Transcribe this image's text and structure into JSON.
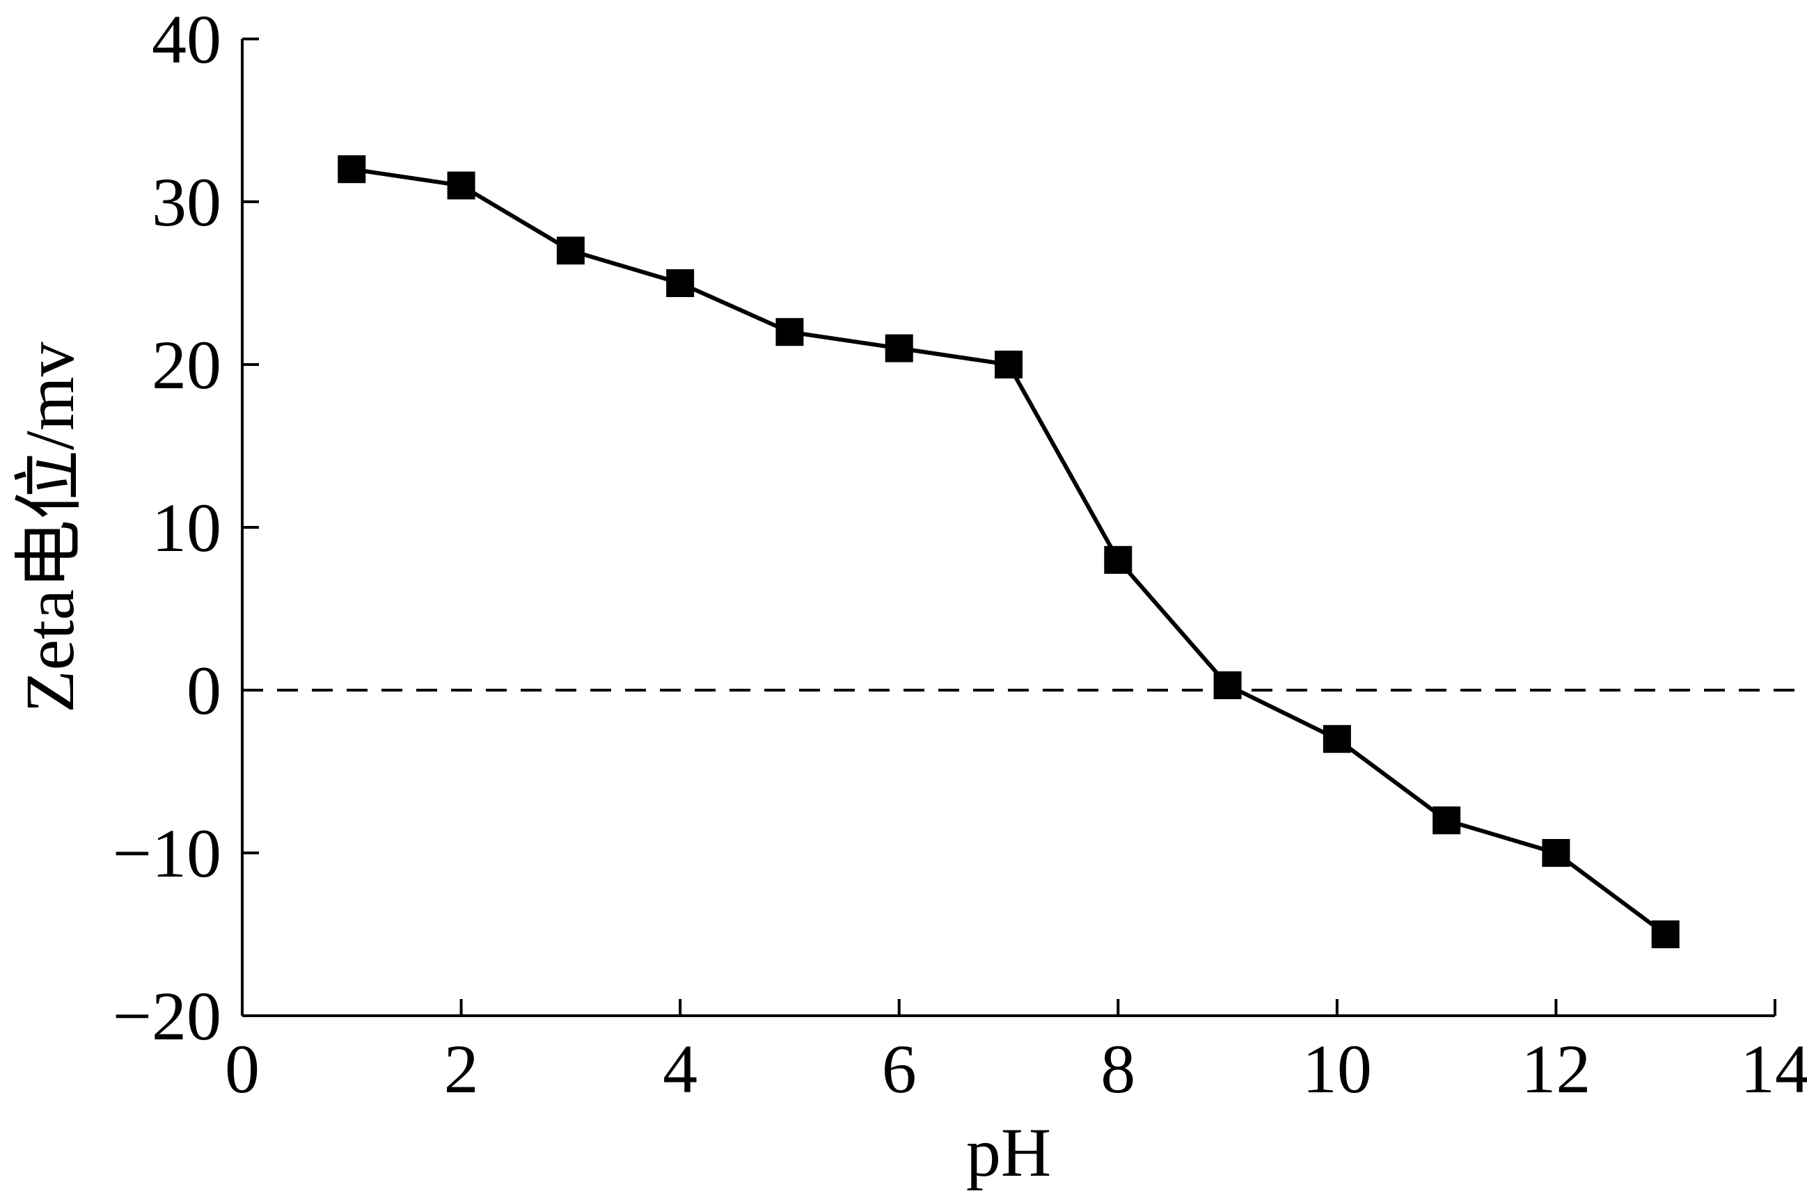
{
  "chart_data": {
    "type": "line",
    "title": "",
    "xlabel": "pH",
    "ylabel": "Zeta电位/mv",
    "xlim": [
      0,
      14
    ],
    "ylim": [
      -20,
      40
    ],
    "xticks": [
      0,
      2,
      4,
      6,
      8,
      10,
      12,
      14
    ],
    "yticks": [
      -20,
      -10,
      0,
      10,
      20,
      30,
      40
    ],
    "ytick_labels": [
      "−20",
      "−10",
      "0",
      "10",
      "20",
      "30",
      "40"
    ],
    "grid": false,
    "reference_line": {
      "y": 0,
      "style": "dashed"
    },
    "series": [
      {
        "marker": "square",
        "color": "#000000",
        "x": [
          1,
          2,
          3,
          4,
          5,
          6,
          7,
          8,
          9,
          10,
          11,
          12,
          13
        ],
        "y": [
          32,
          31,
          27,
          25,
          22,
          21,
          20,
          8,
          0.3,
          -3,
          -8,
          -10,
          -15
        ]
      }
    ]
  }
}
